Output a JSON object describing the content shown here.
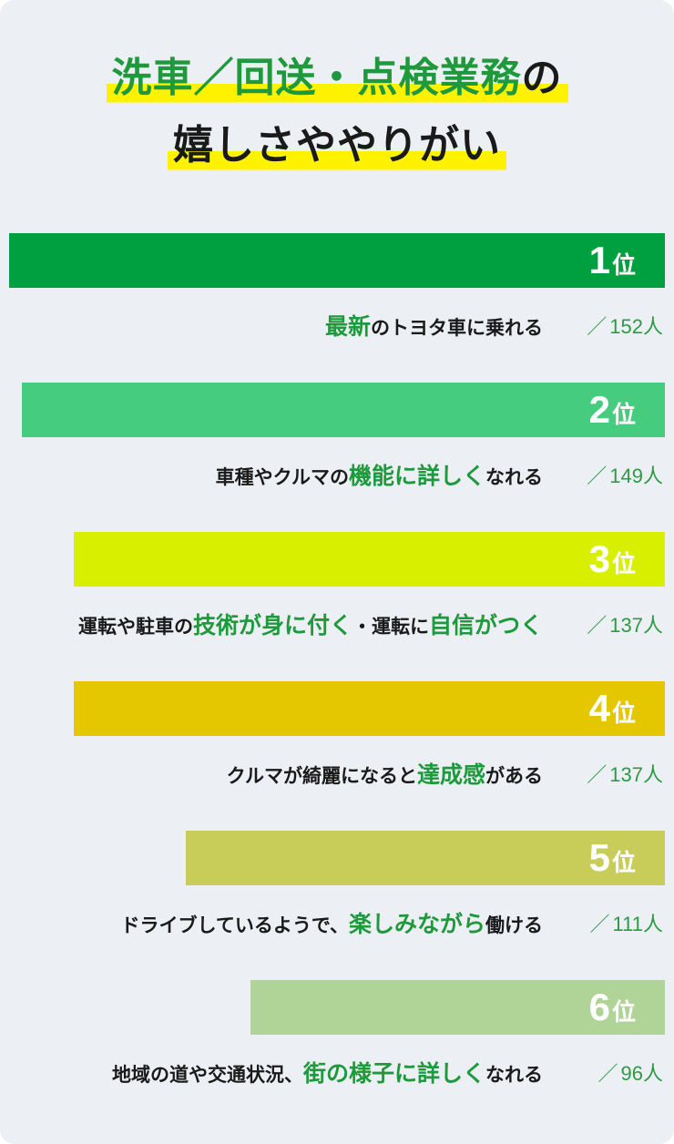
{
  "title": {
    "line1": [
      {
        "text": "洗車／回送・点検業務",
        "tone": "green"
      },
      {
        "text": "の",
        "tone": "dark"
      }
    ],
    "line2": "嬉しさややりがい"
  },
  "colors": {
    "background": "#eceff4",
    "accent_green": "#1e9a3c",
    "highlight": "#fff200"
  },
  "chart_data": {
    "type": "bar",
    "orientation": "horizontal",
    "unit": "人",
    "xlim": [
      0,
      152
    ],
    "categories": [
      "最新のトヨタ車に乗れる",
      "車種やクルマの機能に詳しくなれる",
      "運転や駐車の技術が身に付く・運転に自信がつく",
      "クルマが綺麗になると達成感がある",
      "ドライブしているようで、楽しみながら働ける",
      "地域の道や交通状況、街の様子に詳しくなれる"
    ],
    "values": [
      152,
      149,
      137,
      137,
      111,
      96
    ]
  },
  "ranking": [
    {
      "rank": "1",
      "rank_suffix": "位",
      "value": 152,
      "color": "#00a040",
      "label_parts": [
        {
          "text": "最新",
          "emph": true
        },
        {
          "text": "のトヨタ車に乗れる",
          "emph": false
        }
      ],
      "count_prefix": "／",
      "count_text": "152人"
    },
    {
      "rank": "2",
      "rank_suffix": "位",
      "value": 149,
      "color": "#45cc7f",
      "label_parts": [
        {
          "text": "車種やクルマの",
          "emph": false
        },
        {
          "text": "機能に詳しく",
          "emph": true
        },
        {
          "text": "なれる",
          "emph": false
        }
      ],
      "count_prefix": "／",
      "count_text": "149人"
    },
    {
      "rank": "3",
      "rank_suffix": "位",
      "value": 137,
      "color": "#d8f000",
      "label_parts": [
        {
          "text": "運転や駐車の",
          "emph": false
        },
        {
          "text": "技術が身に付く",
          "emph": true
        },
        {
          "text": "・運転に",
          "emph": false
        },
        {
          "text": "自信がつく",
          "emph": true
        }
      ],
      "count_prefix": "／",
      "count_text": "137人"
    },
    {
      "rank": "4",
      "rank_suffix": "位",
      "value": 137,
      "color": "#e5c700",
      "label_parts": [
        {
          "text": "クルマが綺麗になると",
          "emph": false
        },
        {
          "text": "達成感",
          "emph": true
        },
        {
          "text": "がある",
          "emph": false
        }
      ],
      "count_prefix": "／",
      "count_text": "137人"
    },
    {
      "rank": "5",
      "rank_suffix": "位",
      "value": 111,
      "color": "#c8cc58",
      "label_parts": [
        {
          "text": "ドライブしているようで、",
          "emph": false
        },
        {
          "text": "楽しみながら",
          "emph": true
        },
        {
          "text": "働ける",
          "emph": false
        }
      ],
      "count_prefix": "／",
      "count_text": "111人"
    },
    {
      "rank": "6",
      "rank_suffix": "位",
      "value": 96,
      "color": "#b0d497",
      "label_parts": [
        {
          "text": "地域の道や交通状況、",
          "emph": false
        },
        {
          "text": "街の様子に詳しく",
          "emph": true
        },
        {
          "text": "なれる",
          "emph": false
        }
      ],
      "count_prefix": "／",
      "count_text": "96人"
    }
  ]
}
